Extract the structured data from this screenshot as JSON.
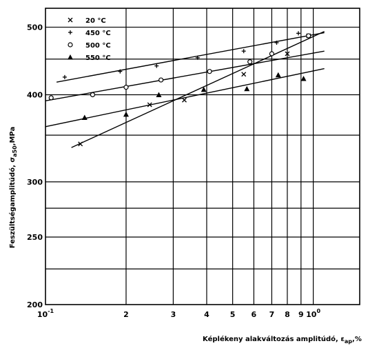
{
  "chart_data": {
    "type": "scatter",
    "xlabel": "Képlékeny alakváltozás amplitúdó,  ε",
    "xlabel_sub": "ap",
    "xlabel_unit": ",%",
    "ylabel": "Feszültségamplitúdó,  σ",
    "ylabel_sub": "a50",
    "ylabel_unit": ",MPa",
    "x_scale": "log",
    "y_scale": "log",
    "xlim": [
      0.1,
      1.6
    ],
    "ylim": [
      200,
      560
    ],
    "grid": true,
    "legend_position": "top-left",
    "x_ticks": [
      {
        "value": 0.1,
        "label": "10",
        "sup": "-1"
      },
      {
        "value": 0.2,
        "label": "2",
        "sup": ""
      },
      {
        "value": 0.3,
        "label": "3",
        "sup": ""
      },
      {
        "value": 0.4,
        "label": "4",
        "sup": ""
      },
      {
        "value": 0.5,
        "label": "5",
        "sup": ""
      },
      {
        "value": 0.6,
        "label": "6",
        "sup": ""
      },
      {
        "value": 0.7,
        "label": "7",
        "sup": ""
      },
      {
        "value": 0.8,
        "label": "8",
        "sup": ""
      },
      {
        "value": 0.9,
        "label": "9",
        "sup": ""
      },
      {
        "value": 1.0,
        "label": "10",
        "sup": "0"
      }
    ],
    "y_ticks": [
      {
        "value": 200,
        "label": "200"
      },
      {
        "value": 250,
        "label": "250"
      },
      {
        "value": 300,
        "label": "300"
      },
      {
        "value": 400,
        "label": "400"
      },
      {
        "value": 500,
        "label": "500"
      }
    ],
    "extra_grid_y": [
      225,
      275,
      350,
      450
    ],
    "series": [
      {
        "name": "20  °C",
        "marker": "x",
        "points": [
          [
            0.135,
            340
          ],
          [
            0.245,
            387
          ],
          [
            0.33,
            393
          ],
          [
            0.55,
            428
          ],
          [
            0.8,
            458
          ],
          [
            0.96,
            486
          ]
        ],
        "fit": [
          [
            0.125,
            336
          ],
          [
            1.1,
            493
          ]
        ]
      },
      {
        "name": "450  °C",
        "marker": "+",
        "points": [
          [
            0.118,
            424
          ],
          [
            0.19,
            432
          ],
          [
            0.26,
            440
          ],
          [
            0.37,
            452
          ],
          [
            0.55,
            462
          ],
          [
            0.73,
            475
          ],
          [
            0.88,
            490
          ]
        ],
        "fit": [
          [
            0.11,
            417
          ],
          [
            1.1,
            491
          ]
        ]
      },
      {
        "name": "500  °C",
        "marker": "o",
        "points": [
          [
            0.105,
            396
          ],
          [
            0.15,
            400
          ],
          [
            0.2,
            410
          ],
          [
            0.27,
            420
          ],
          [
            0.41,
            432
          ],
          [
            0.58,
            446
          ],
          [
            0.7,
            458
          ],
          [
            0.96,
            486
          ]
        ],
        "fit": [
          [
            0.1,
            392
          ],
          [
            1.1,
            462
          ]
        ]
      },
      {
        "name": "550  °C",
        "marker": "triangle",
        "points": [
          [
            0.14,
            371
          ],
          [
            0.2,
            375
          ],
          [
            0.265,
            400
          ],
          [
            0.39,
            407
          ],
          [
            0.565,
            408
          ],
          [
            0.74,
            427
          ],
          [
            0.92,
            422
          ]
        ],
        "fit": [
          [
            0.1,
            360
          ],
          [
            1.1,
            436
          ]
        ]
      }
    ]
  }
}
